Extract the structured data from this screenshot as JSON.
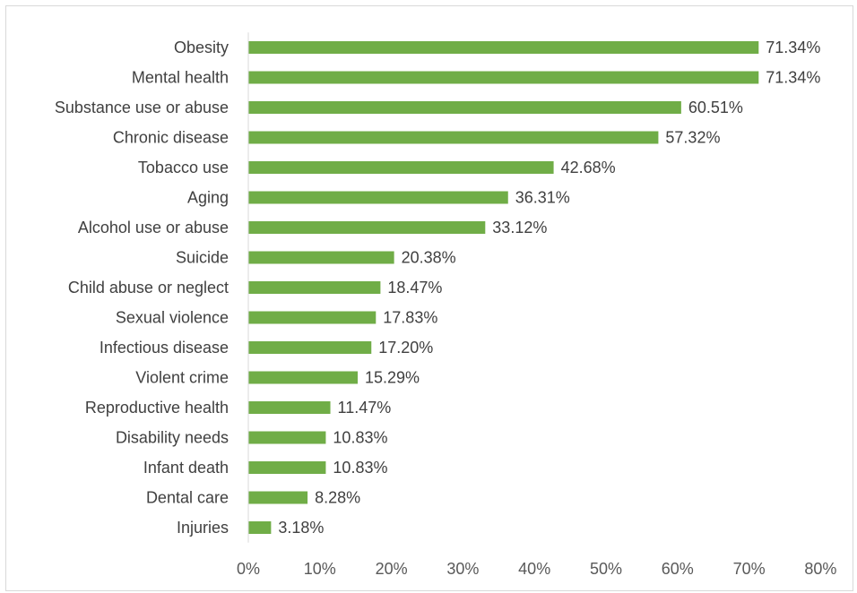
{
  "chart_data": {
    "type": "bar",
    "orientation": "horizontal",
    "title": "",
    "xlabel": "",
    "ylabel": "",
    "categories": [
      "Obesity",
      "Mental health",
      "Substance use or abuse",
      "Chronic disease",
      "Tobacco use",
      "Aging",
      "Alcohol use or abuse",
      "Suicide",
      "Child abuse or neglect",
      "Sexual violence",
      "Infectious disease",
      "Violent crime",
      "Reproductive health",
      "Disability needs",
      "Infant death",
      "Dental care",
      "Injuries"
    ],
    "values": [
      71.34,
      71.34,
      60.51,
      57.32,
      42.68,
      36.31,
      33.12,
      20.38,
      18.47,
      17.83,
      17.2,
      15.29,
      11.47,
      10.83,
      10.83,
      8.28,
      3.18
    ],
    "value_labels": [
      "71.34%",
      "71.34%",
      "60.51%",
      "57.32%",
      "42.68%",
      "36.31%",
      "33.12%",
      "20.38%",
      "18.47%",
      "17.83%",
      "17.20%",
      "15.29%",
      "11.47%",
      "10.83%",
      "10.83%",
      "8.28%",
      "3.18%"
    ],
    "xlim": [
      0,
      80
    ],
    "xticks": [
      0,
      10,
      20,
      30,
      40,
      50,
      60,
      70,
      80
    ],
    "xtick_labels": [
      "0%",
      "10%",
      "20%",
      "30%",
      "40%",
      "50%",
      "60%",
      "70%",
      "80%"
    ],
    "grid": false,
    "legend": "none",
    "bar_color": "#70ad47",
    "axis_color": "#d9d9d9"
  }
}
